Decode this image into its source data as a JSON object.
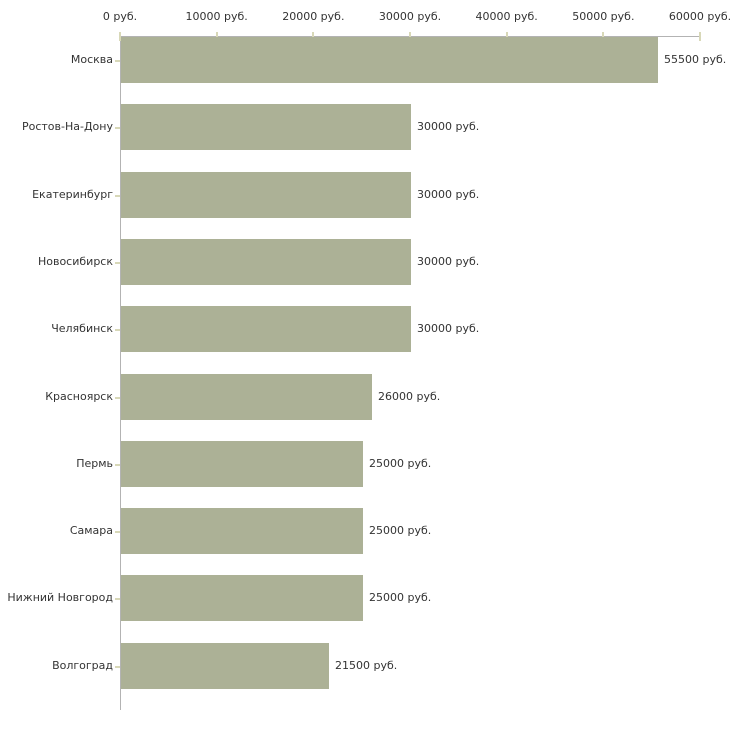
{
  "chart_data": {
    "type": "bar",
    "orientation": "horizontal",
    "title": "",
    "categories": [
      "Москва",
      "Ростов-На-Дону",
      "Екатеринбург",
      "Новосибирск",
      "Челябинск",
      "Красноярск",
      "Пермь",
      "Самара",
      "Нижний Новгород",
      "Волгоград"
    ],
    "values": [
      55500,
      30000,
      30000,
      30000,
      30000,
      26000,
      25000,
      25000,
      25000,
      21500
    ],
    "value_labels": [
      "55500 руб.",
      "30000 руб.",
      "30000 руб.",
      "30000 руб.",
      "30000 руб.",
      "26000 руб.",
      "25000 руб.",
      "25000 руб.",
      "25000 руб.",
      "21500 руб."
    ],
    "unit": "руб.",
    "x_axis": {
      "position": "top",
      "min": 0,
      "max": 60000,
      "ticks": [
        0,
        10000,
        20000,
        30000,
        40000,
        50000,
        60000
      ],
      "tick_labels": [
        "0 руб.",
        "10000 руб.",
        "20000 руб.",
        "30000 руб.",
        "40000 руб.",
        "50000 руб.",
        "60000 руб."
      ]
    },
    "legend": false,
    "grid": false,
    "colors": {
      "bar": "#acb196",
      "axis_line": "#b3b3b3",
      "tick_mark": "#d8d8b8",
      "text": "#333333",
      "background": "#ffffff"
    }
  }
}
